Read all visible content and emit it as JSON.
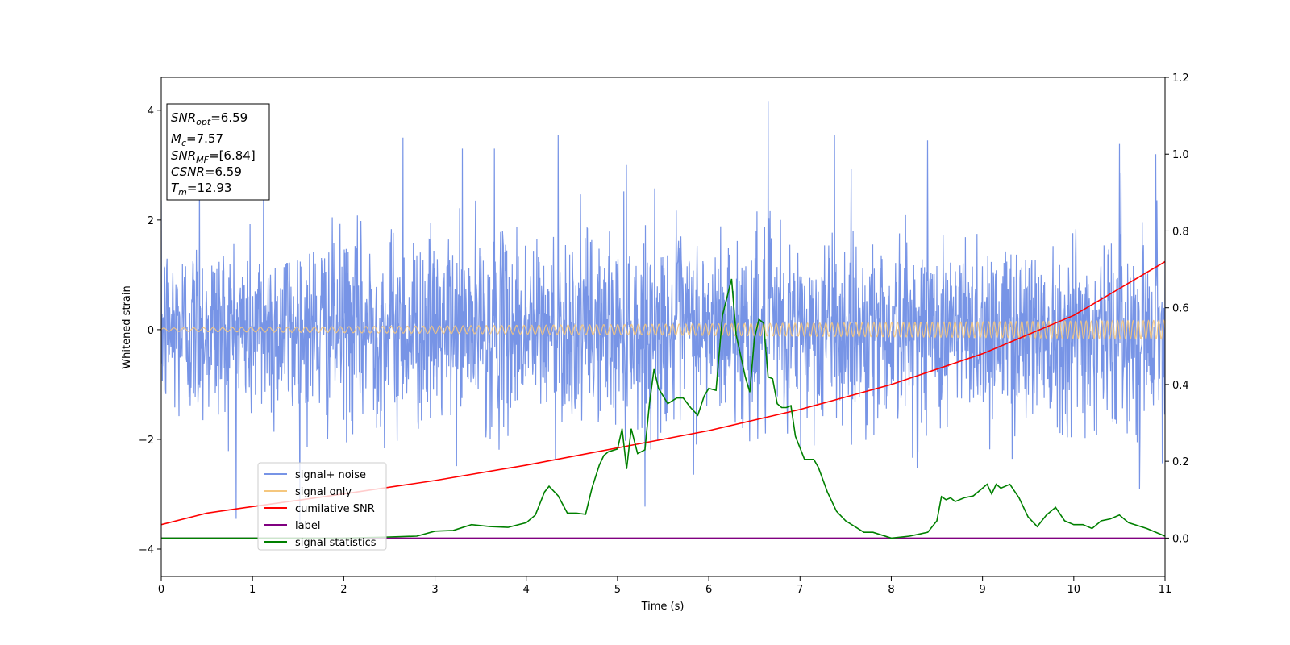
{
  "chart_data": {
    "type": "line",
    "xlabel": "Time (s)",
    "ylabel_left": "Whitened strain",
    "ylabel_right": "",
    "xlim": [
      0,
      11
    ],
    "ylim_left": [
      -4.5,
      4.6
    ],
    "ylim_right": [
      -0.1,
      1.2
    ],
    "x_ticks": [
      0,
      1,
      2,
      3,
      4,
      5,
      6,
      7,
      8,
      9,
      10,
      11
    ],
    "y_ticks_left": [
      -4,
      -2,
      0,
      2,
      4
    ],
    "y_ticks_right": [
      0.0,
      0.2,
      0.4,
      0.6,
      0.8,
      1.0,
      1.2
    ],
    "grid": false,
    "legend_position": "lower-left",
    "legend": [
      {
        "label": "signal+ noise",
        "color": "#7794e6"
      },
      {
        "label": "signal only",
        "color": "#f5c77e"
      },
      {
        "label": "cumilative SNR",
        "color": "#ff0000"
      },
      {
        "label": "label",
        "color": "#800080"
      },
      {
        "label": "signal statistics",
        "color": "#008000"
      }
    ],
    "annotation": [
      {
        "base": "SNR",
        "sub": "opt",
        "value": "=6.59"
      },
      {
        "base": "M",
        "sub": "c",
        "value": "=7.57"
      },
      {
        "base": "SNR",
        "sub": "MF",
        "value": "=[6.84]"
      },
      {
        "base": "CSNR",
        "sub": "",
        "value": "=6.59"
      },
      {
        "base": "T",
        "sub": "m",
        "value": "=12.93"
      }
    ],
    "series": [
      {
        "name": "signal+ noise",
        "axis": "left",
        "color": "#7794e6",
        "description_values": {
          "noise_std": 0.85,
          "duration_s": 11
        },
        "spikes_x": [
          0.42,
          1.12,
          2.65,
          3.3,
          3.65,
          4.35,
          5.1,
          6.65,
          7.38,
          8.4,
          10.5,
          10.9
        ],
        "spikes_y": [
          3.0,
          2.9,
          3.5,
          3.3,
          3.3,
          3.55,
          3.0,
          4.17,
          3.55,
          3.45,
          3.4,
          3.2
        ]
      },
      {
        "name": "signal only",
        "axis": "left",
        "color": "#f5c77e",
        "amplitude_start": 0.03,
        "amplitude_end": 0.17
      },
      {
        "name": "cumilative SNR",
        "axis": "right",
        "color": "#ff0000",
        "x": [
          0,
          0.5,
          1,
          2,
          3,
          4,
          5,
          6,
          7,
          8,
          9,
          10,
          11
        ],
        "values": [
          0.035,
          0.065,
          0.082,
          0.115,
          0.15,
          0.19,
          0.235,
          0.28,
          0.335,
          0.4,
          0.48,
          0.58,
          0.72
        ]
      },
      {
        "name": "label",
        "axis": "right",
        "color": "#800080",
        "x": [
          0,
          11
        ],
        "values": [
          0.0,
          0.0
        ]
      },
      {
        "name": "signal statistics",
        "axis": "right",
        "color": "#008000",
        "x": [
          0,
          2,
          2.5,
          2.8,
          3.0,
          3.2,
          3.4,
          3.6,
          3.8,
          4.0,
          4.1,
          4.2,
          4.25,
          4.35,
          4.45,
          4.55,
          4.65,
          4.72,
          4.8,
          4.85,
          4.9,
          5.0,
          5.05,
          5.1,
          5.15,
          5.22,
          5.3,
          5.35,
          5.4,
          5.45,
          5.55,
          5.65,
          5.72,
          5.8,
          5.88,
          5.95,
          6.0,
          6.08,
          6.15,
          6.25,
          6.3,
          6.4,
          6.45,
          6.5,
          6.55,
          6.6,
          6.65,
          6.7,
          6.75,
          6.8,
          6.85,
          6.9,
          6.95,
          7.05,
          7.15,
          7.2,
          7.3,
          7.4,
          7.5,
          7.6,
          7.7,
          7.8,
          8.0,
          8.2,
          8.4,
          8.5,
          8.55,
          8.6,
          8.65,
          8.7,
          8.8,
          8.9,
          9.0,
          9.05,
          9.1,
          9.15,
          9.2,
          9.3,
          9.4,
          9.5,
          9.6,
          9.7,
          9.8,
          9.9,
          10.0,
          10.1,
          10.2,
          10.3,
          10.4,
          10.5,
          10.6,
          10.8,
          11.0
        ],
        "values": [
          0.0,
          0.0,
          0.003,
          0.005,
          0.018,
          0.02,
          0.035,
          0.03,
          0.028,
          0.04,
          0.06,
          0.12,
          0.135,
          0.11,
          0.065,
          0.065,
          0.062,
          0.13,
          0.19,
          0.215,
          0.225,
          0.232,
          0.285,
          0.18,
          0.285,
          0.22,
          0.23,
          0.35,
          0.44,
          0.39,
          0.35,
          0.365,
          0.365,
          0.34,
          0.32,
          0.37,
          0.39,
          0.385,
          0.58,
          0.675,
          0.53,
          0.42,
          0.38,
          0.52,
          0.57,
          0.56,
          0.42,
          0.415,
          0.35,
          0.34,
          0.34,
          0.345,
          0.265,
          0.205,
          0.205,
          0.185,
          0.12,
          0.07,
          0.045,
          0.03,
          0.015,
          0.015,
          0.0,
          0.005,
          0.015,
          0.045,
          0.108,
          0.1,
          0.105,
          0.095,
          0.105,
          0.11,
          0.13,
          0.14,
          0.115,
          0.14,
          0.13,
          0.14,
          0.105,
          0.055,
          0.03,
          0.06,
          0.08,
          0.045,
          0.035,
          0.035,
          0.025,
          0.045,
          0.05,
          0.06,
          0.04,
          0.025,
          0.005
        ]
      }
    ]
  }
}
